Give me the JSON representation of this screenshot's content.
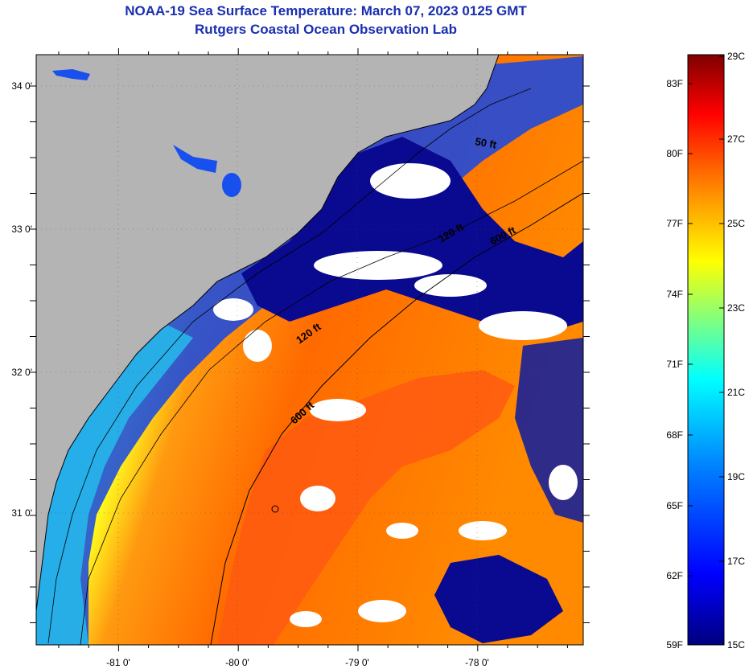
{
  "header": {
    "title": "NOAA-19 Sea Surface Temperature:  March 07, 2023 0125 GMT",
    "subtitle": "Rutgers Coastal Ocean Observation Lab"
  },
  "axes": {
    "longitude_labels": [
      "-81 0'",
      "-80 0'",
      "-79 0'",
      "-78 0'"
    ],
    "latitude_labels": [
      "34 0'",
      "33 0'",
      "32 0'",
      "31 0'"
    ]
  },
  "depth_contours": [
    "50 ft",
    "120 ft",
    "600 ft",
    "120 ft",
    "600 ft"
  ],
  "colorbar": {
    "fahrenheit_labels": [
      "83F",
      "80F",
      "77F",
      "74F",
      "71F",
      "68F",
      "65F",
      "62F",
      "59F"
    ],
    "celsius_labels": [
      "29C",
      "27C",
      "25C",
      "23C",
      "21C",
      "19C",
      "17C",
      "15C"
    ],
    "colors": [
      "#00007f",
      "#0000ff",
      "#007fff",
      "#00ffff",
      "#7fff7f",
      "#ffff00",
      "#ff7f00",
      "#ff0000",
      "#7f0000"
    ]
  },
  "colors": {
    "land": "#b4b4b4",
    "cloud": "#ffffff",
    "title": "#1a2fb0"
  }
}
